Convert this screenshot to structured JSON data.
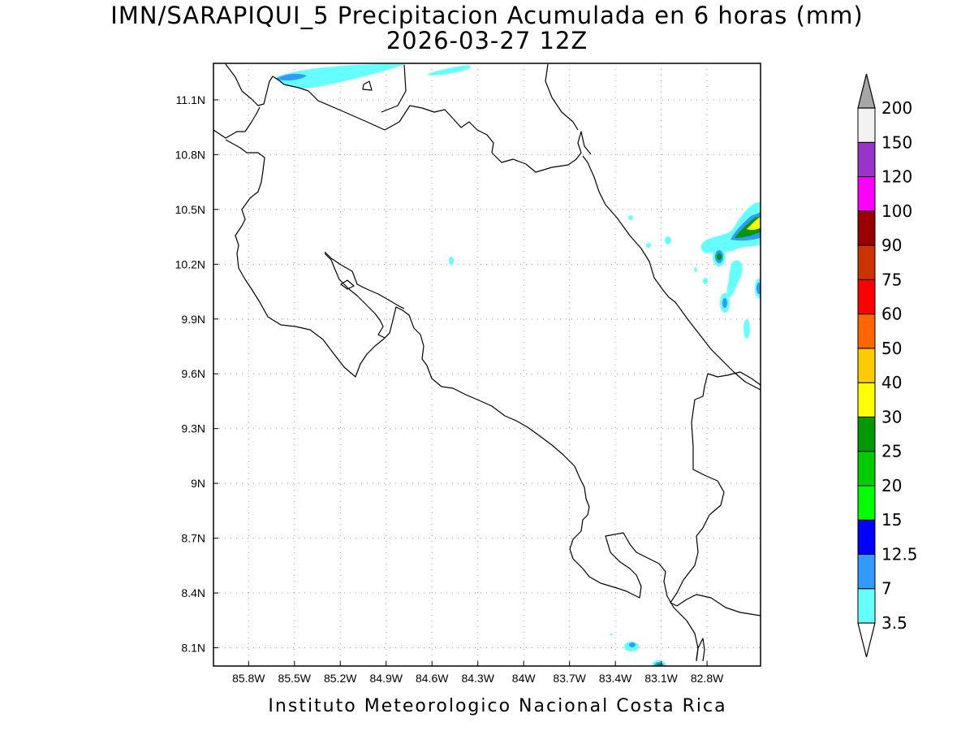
{
  "title": {
    "line1": "IMN/SARAPIQUI_5 Precipitacion Acumulada en 6 horas (mm)",
    "line2": "2026-03-27 12Z"
  },
  "map": {
    "lon_range": [
      -86.03,
      -82.45
    ],
    "lat_range": [
      8.0,
      11.3
    ],
    "lon_ticks": [
      {
        "value": -85.8,
        "label": "85.8W"
      },
      {
        "value": -85.5,
        "label": "85.5W"
      },
      {
        "value": -85.2,
        "label": "85.2W"
      },
      {
        "value": -84.9,
        "label": "84.9W"
      },
      {
        "value": -84.6,
        "label": "84.6W"
      },
      {
        "value": -84.3,
        "label": "84.3W"
      },
      {
        "value": -84.0,
        "label": "84W"
      },
      {
        "value": -83.7,
        "label": "83.7W"
      },
      {
        "value": -83.4,
        "label": "83.4W"
      },
      {
        "value": -83.1,
        "label": "83.1W"
      },
      {
        "value": -82.8,
        "label": "82.8W"
      }
    ],
    "lat_ticks": [
      {
        "value": 11.1,
        "label": "11.1N"
      },
      {
        "value": 10.8,
        "label": "10.8N"
      },
      {
        "value": 10.5,
        "label": "10.5N"
      },
      {
        "value": 10.2,
        "label": "10.2N"
      },
      {
        "value": 9.9,
        "label": "9.9N"
      },
      {
        "value": 9.6,
        "label": "9.6N"
      },
      {
        "value": 9.3,
        "label": "9.3N"
      },
      {
        "value": 9.0,
        "label": "9N"
      },
      {
        "value": 8.7,
        "label": "8.7N"
      },
      {
        "value": 8.4,
        "label": "8.4N"
      },
      {
        "value": 8.1,
        "label": "8.1N"
      }
    ],
    "grid": true
  },
  "legend": {
    "units": "mm",
    "levels": [
      {
        "label": "3.5",
        "color": "#66ffff"
      },
      {
        "label": "7",
        "color": "#3399ff"
      },
      {
        "label": "12.5",
        "color": "#0000ff"
      },
      {
        "label": "15",
        "color": "#00ff00"
      },
      {
        "label": "20",
        "color": "#00cc00"
      },
      {
        "label": "25",
        "color": "#009900"
      },
      {
        "label": "30",
        "color": "#ffff00"
      },
      {
        "label": "40",
        "color": "#ffcc00"
      },
      {
        "label": "50",
        "color": "#ff6600"
      },
      {
        "label": "60",
        "color": "#ff0000"
      },
      {
        "label": "75",
        "color": "#cc3300"
      },
      {
        "label": "90",
        "color": "#990000"
      },
      {
        "label": "100",
        "color": "#ff00ff"
      },
      {
        "label": "120",
        "color": "#9933cc"
      },
      {
        "label": "150",
        "color": "#f2f2f2"
      },
      {
        "label": "200",
        "color": "#a6a6a6"
      }
    ],
    "under_color": "#ffffff",
    "over_color": "#a6a6a6"
  },
  "footer": {
    "text": "Instituto Meteorologico Nacional Costa Rica"
  }
}
